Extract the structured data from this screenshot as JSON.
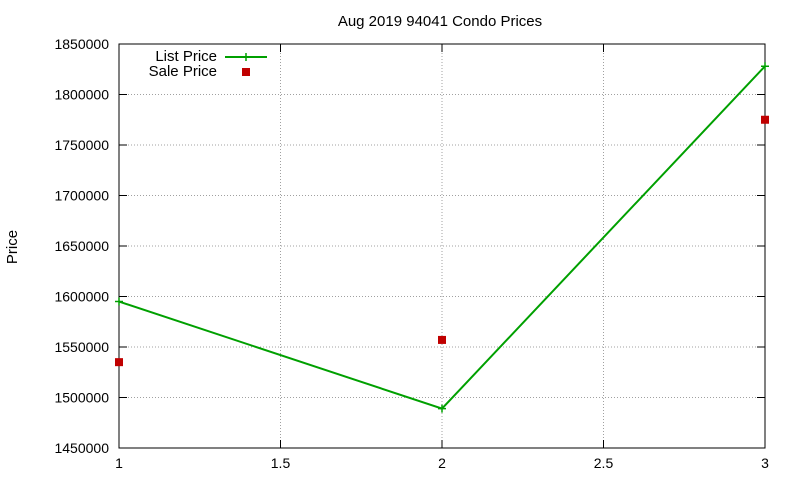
{
  "chart_data": {
    "type": "line",
    "title": "Aug 2019 94041 Condo Prices",
    "xlabel": "",
    "ylabel": "Price",
    "x": [
      1,
      2,
      3
    ],
    "xlim": [
      1,
      3
    ],
    "ylim": [
      1450000,
      1850000
    ],
    "xticks": [
      1,
      1.5,
      2,
      2.5,
      3
    ],
    "xtick_labels": [
      "1",
      "1.5",
      "2",
      "2.5",
      "3"
    ],
    "yticks": [
      1450000,
      1500000,
      1550000,
      1600000,
      1650000,
      1700000,
      1750000,
      1800000,
      1850000
    ],
    "ytick_labels": [
      "1450000",
      "1500000",
      "1550000",
      "1600000",
      "1650000",
      "1700000",
      "1750000",
      "1800000",
      "1850000"
    ],
    "grid": true,
    "legend_position": "top-left",
    "series": [
      {
        "name": "List Price",
        "style": "line+cross",
        "color": "#00a000",
        "values": [
          1595000,
          1489000,
          1828000
        ]
      },
      {
        "name": "Sale Price",
        "style": "square-points",
        "color": "#c00000",
        "values": [
          1535000,
          1557000,
          1775000
        ]
      }
    ]
  }
}
